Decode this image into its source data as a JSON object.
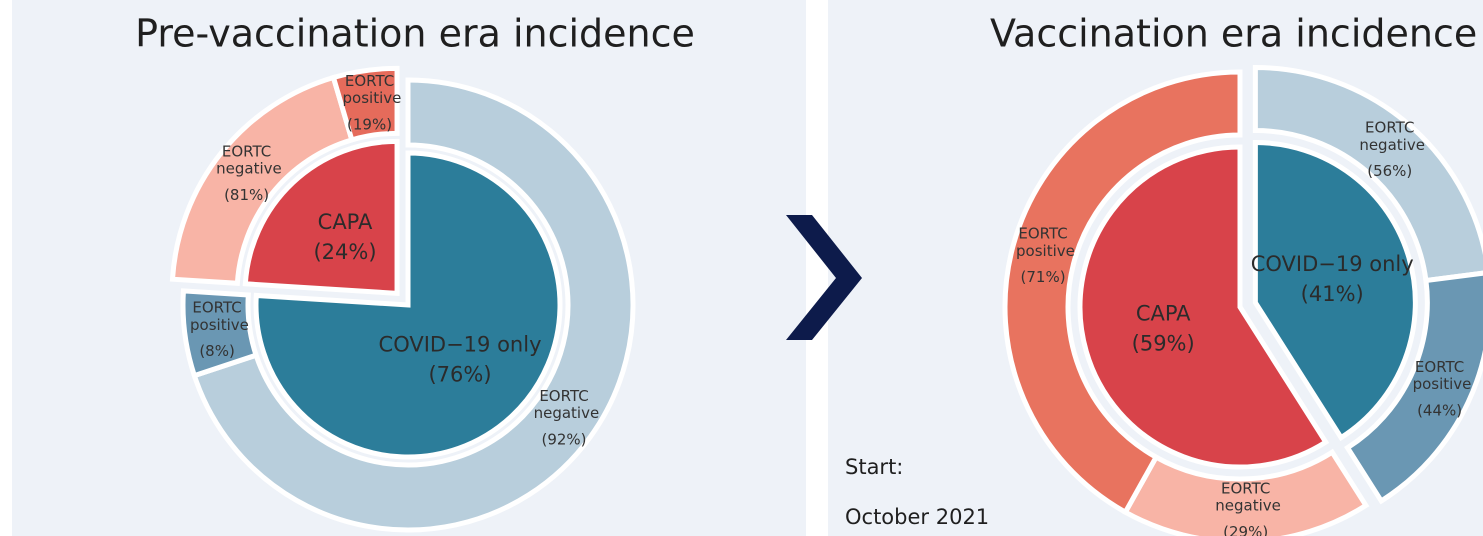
{
  "chart_data": [
    {
      "type": "sunburst",
      "title": "Pre-vaccination era incidence",
      "categories": [
        "COVID−19 only",
        "CAPA"
      ],
      "values": [
        76,
        24
      ],
      "value_labels": [
        "(76%)",
        "(24%)"
      ],
      "colors": [
        "#2c7d9a",
        "#d8434a"
      ],
      "explode": [
        false,
        true
      ],
      "children": [
        {
          "categories": [
            "EORTC negative",
            "EORTC positive"
          ],
          "values": [
            92,
            8
          ],
          "value_labels": [
            "(92%)",
            "(8%)"
          ],
          "colors": [
            "#b8cedc",
            "#6a97b3"
          ]
        },
        {
          "categories": [
            "EORTC negative",
            "EORTC positive"
          ],
          "values": [
            81,
            19
          ],
          "value_labels": [
            "(81%)",
            "(19%)"
          ],
          "colors": [
            "#f8b4a6",
            "#e56b5b"
          ]
        }
      ]
    },
    {
      "type": "sunburst",
      "title": "Vaccination era incidence",
      "categories": [
        "COVID−19 only",
        "CAPA"
      ],
      "values": [
        41,
        59
      ],
      "value_labels": [
        "(41%)",
        "(59%)"
      ],
      "colors": [
        "#2c7d9a",
        "#d8434a"
      ],
      "explode": [
        true,
        false
      ],
      "annotations": [
        "Start:",
        "October 2021"
      ],
      "children": [
        {
          "categories": [
            "EORTC negative",
            "EORTC positive"
          ],
          "values": [
            56,
            44
          ],
          "value_labels": [
            "(56%)",
            "(44%)"
          ],
          "colors": [
            "#b8cedc",
            "#6a97b3"
          ]
        },
        {
          "categories": [
            "EORTC negative",
            "EORTC positive"
          ],
          "values": [
            29,
            71
          ],
          "value_labels": [
            "(29%)",
            "(71%)"
          ],
          "colors": [
            "#f8b4a6",
            "#e8735f"
          ]
        }
      ]
    }
  ]
}
